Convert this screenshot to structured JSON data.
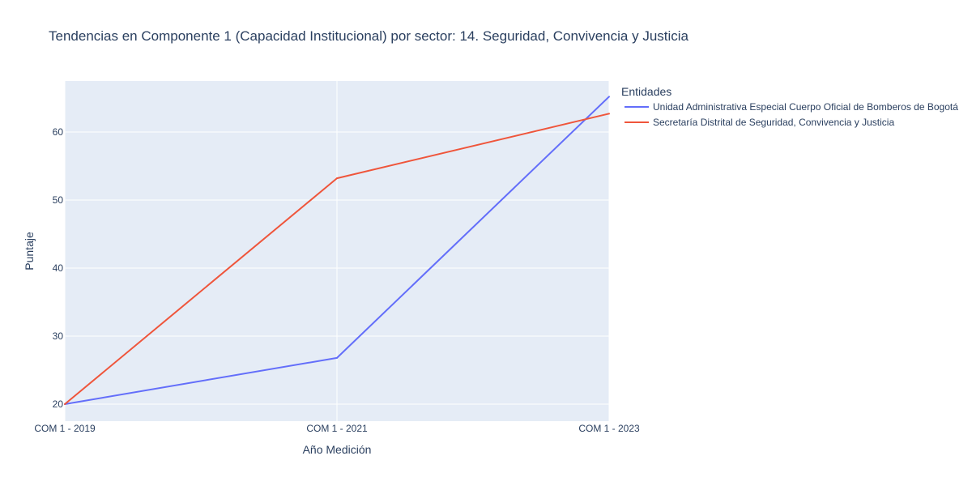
{
  "chart_data": {
    "type": "line",
    "title": "Tendencias en Componente 1 (Capacidad Institucional) por sector: 14. Seguridad, Convivencia y Justicia",
    "xlabel": "Año Medición",
    "ylabel": "Puntaje",
    "categories": [
      "COM 1 - 2019",
      "COM 1 - 2021",
      "COM 1 - 2023"
    ],
    "ylim": [
      17.5,
      67.5
    ],
    "yticks": [
      20,
      30,
      40,
      50,
      60
    ],
    "grid": true,
    "legend_title": "Entidades",
    "legend_position": "right",
    "series": [
      {
        "name": "Unidad Administrativa Especial Cuerpo Oficial de Bomberos de Bogotá",
        "color": "#636efa",
        "values": [
          20.0,
          26.8,
          65.2
        ]
      },
      {
        "name": "Secretaría Distrital de Seguridad, Convivencia y Justicia",
        "color": "#ef553b",
        "values": [
          20.0,
          53.2,
          62.7
        ]
      }
    ]
  }
}
